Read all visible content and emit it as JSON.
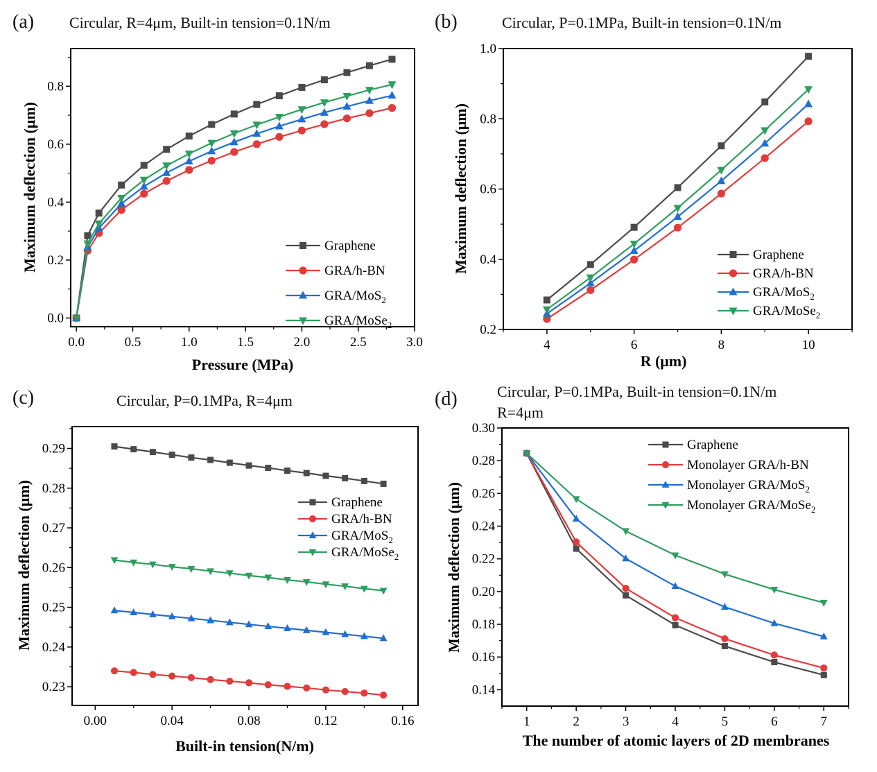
{
  "figure": {
    "series_colors": {
      "Graphene": "#4a4a4a",
      "GRA/h-BN": "#e23b3b",
      "GRA/MoS2": "#1f6fd1",
      "GRA/MoSe2": "#2e9e5e"
    }
  },
  "chart_data": [
    {
      "panel": "(a)",
      "type": "line",
      "title": "Circular, R=4μm, Built-in tension=0.1N/m",
      "xlabel": "Pressure (MPa)",
      "ylabel": "Maximum deflection (μm)",
      "xlim": [
        -0.05,
        3.0
      ],
      "ylim": [
        -0.03,
        0.93
      ],
      "xticks": [
        0.0,
        0.5,
        1.0,
        1.5,
        2.0,
        2.5,
        3.0
      ],
      "xtick_labels": [
        "0.0",
        "0.5",
        "1.0",
        "1.5",
        "2.0",
        "2.5",
        "3.0"
      ],
      "yticks": [
        0.0,
        0.2,
        0.4,
        0.6,
        0.8
      ],
      "ytick_labels": [
        "0.0",
        "0.2",
        "0.4",
        "0.6",
        "0.8"
      ],
      "legend_position": "bottom-right",
      "grid": false,
      "x": [
        0,
        0.1,
        0.2,
        0.4,
        0.6,
        0.8,
        1.0,
        1.2,
        1.4,
        1.6,
        1.8,
        2.0,
        2.2,
        2.4,
        2.6,
        2.8
      ],
      "series": [
        {
          "name": "Graphene",
          "label": "Graphene",
          "label_sub": "",
          "marker": "square",
          "values": [
            0,
            0.284,
            0.362,
            0.459,
            0.527,
            0.582,
            0.628,
            0.668,
            0.704,
            0.737,
            0.767,
            0.796,
            0.822,
            0.847,
            0.871,
            0.893
          ]
        },
        {
          "name": "GRA/h-BN",
          "label": "GRA/h-BN",
          "label_sub": "",
          "marker": "circle",
          "values": [
            0,
            0.232,
            0.293,
            0.373,
            0.429,
            0.473,
            0.511,
            0.543,
            0.573,
            0.6,
            0.625,
            0.647,
            0.669,
            0.689,
            0.707,
            0.725
          ]
        },
        {
          "name": "GRA/MoS2",
          "label": "GRA/MoS",
          "label_sub": "2",
          "marker": "triangle-up",
          "values": [
            0,
            0.245,
            0.31,
            0.395,
            0.454,
            0.501,
            0.541,
            0.576,
            0.607,
            0.636,
            0.662,
            0.686,
            0.709,
            0.73,
            0.75,
            0.768
          ]
        },
        {
          "name": "GRA/MoSe2",
          "label": "GRA/MoSe",
          "label_sub": "2",
          "marker": "triangle-down",
          "values": [
            0,
            0.257,
            0.326,
            0.414,
            0.477,
            0.526,
            0.567,
            0.604,
            0.637,
            0.667,
            0.694,
            0.72,
            0.744,
            0.766,
            0.787,
            0.806
          ]
        }
      ]
    },
    {
      "panel": "(b)",
      "type": "line",
      "title": "Circular, P=0.1MPa, Built-in tension=0.1N/m",
      "xlabel": "R (μm)",
      "ylabel": "Maximum deflection (μm)",
      "xlim": [
        3.0,
        11.0
      ],
      "ylim": [
        0.2,
        1.0
      ],
      "xticks": [
        4,
        6,
        8,
        10
      ],
      "xtick_labels": [
        "4",
        "6",
        "8",
        "10"
      ],
      "yticks": [
        0.2,
        0.4,
        0.6,
        0.8,
        1.0
      ],
      "ytick_labels": [
        "0.2",
        "0.4",
        "0.6",
        "0.8",
        "1.0"
      ],
      "legend_position": "bottom-right",
      "grid": false,
      "x": [
        4,
        5,
        6,
        7,
        8,
        9,
        10
      ],
      "series": [
        {
          "name": "Graphene",
          "label": "Graphene",
          "label_sub": "",
          "marker": "square",
          "values": [
            0.284,
            0.385,
            0.491,
            0.604,
            0.723,
            0.848,
            0.978
          ]
        },
        {
          "name": "GRA/h-BN",
          "label": "GRA/h-BN",
          "label_sub": "",
          "marker": "circle",
          "values": [
            0.23,
            0.312,
            0.399,
            0.49,
            0.587,
            0.688,
            0.793
          ]
        },
        {
          "name": "GRA/MoS2",
          "label": "GRA/MoS",
          "label_sub": "2",
          "marker": "triangle-up",
          "values": [
            0.245,
            0.332,
            0.424,
            0.521,
            0.623,
            0.73,
            0.842
          ]
        },
        {
          "name": "GRA/MoSe2",
          "label": "GRA/MoSe",
          "label_sub": "2",
          "marker": "triangle-down",
          "values": [
            0.257,
            0.348,
            0.444,
            0.546,
            0.654,
            0.767,
            0.884
          ]
        }
      ]
    },
    {
      "panel": "(c)",
      "type": "line",
      "title": "Circular, P=0.1MPa, R=4μm",
      "xlabel": "Built-in tension(N/m)",
      "ylabel": "Maximum deflection (μm)",
      "xlim": [
        -0.012,
        0.168
      ],
      "ylim": [
        0.2253,
        0.2955
      ],
      "xticks": [
        0.0,
        0.04,
        0.08,
        0.12,
        0.16
      ],
      "xtick_labels": [
        "0.00",
        "0.04",
        "0.08",
        "0.12",
        "0.16"
      ],
      "yticks": [
        0.23,
        0.24,
        0.25,
        0.26,
        0.27,
        0.28,
        0.29
      ],
      "ytick_labels": [
        "0.23",
        "0.24",
        "0.25",
        "0.26",
        "0.27",
        "0.28",
        "0.29"
      ],
      "legend_position": "top-right",
      "grid": false,
      "x": [
        0.01,
        0.02,
        0.03,
        0.04,
        0.05,
        0.06,
        0.07,
        0.08,
        0.09,
        0.1,
        0.11,
        0.12,
        0.13,
        0.14,
        0.15
      ],
      "series": [
        {
          "name": "Graphene",
          "label": "Graphene",
          "label_sub": "",
          "marker": "square",
          "values": [
            0.2905,
            0.2898,
            0.2891,
            0.2884,
            0.2877,
            0.2871,
            0.2864,
            0.2857,
            0.2851,
            0.2844,
            0.2838,
            0.2831,
            0.2825,
            0.2818,
            0.2811
          ]
        },
        {
          "name": "GRA/h-BN",
          "label": "GRA/h-BN",
          "label_sub": "",
          "marker": "circle",
          "values": [
            0.234,
            0.2336,
            0.2331,
            0.2327,
            0.2323,
            0.2318,
            0.2314,
            0.231,
            0.2305,
            0.2301,
            0.2297,
            0.2292,
            0.2288,
            0.2284,
            0.2279
          ]
        },
        {
          "name": "GRA/MoS2",
          "label": "GRA/MoS",
          "label_sub": "2",
          "marker": "triangle-up",
          "values": [
            0.2492,
            0.2487,
            0.2482,
            0.2477,
            0.2472,
            0.2467,
            0.2462,
            0.2457,
            0.2452,
            0.2447,
            0.2442,
            0.2437,
            0.2432,
            0.2427,
            0.2422
          ]
        },
        {
          "name": "GRA/MoSe2",
          "label": "GRA/MoSe",
          "label_sub": "2",
          "marker": "triangle-down",
          "values": [
            0.2619,
            0.2613,
            0.2608,
            0.2602,
            0.2597,
            0.2591,
            0.2586,
            0.258,
            0.2575,
            0.2569,
            0.2564,
            0.2558,
            0.2553,
            0.2547,
            0.2542
          ]
        }
      ]
    },
    {
      "panel": "(d)",
      "type": "line",
      "title": "Circular, P=0.1MPa, Built-in tension=0.1N/m",
      "title_line2": "R=4μm",
      "xlabel": "The number of atomic layers of 2D membranes",
      "ylabel": "Maximum deflection (μm)",
      "xlim": [
        0.5,
        7.5
      ],
      "ylim": [
        0.13,
        0.3
      ],
      "xticks": [
        1,
        2,
        3,
        4,
        5,
        6,
        7
      ],
      "xtick_labels": [
        "1",
        "2",
        "3",
        "4",
        "5",
        "6",
        "7"
      ],
      "yticks": [
        0.14,
        0.16,
        0.18,
        0.2,
        0.22,
        0.24,
        0.26,
        0.28,
        0.3
      ],
      "ytick_labels": [
        "0.14",
        "0.16",
        "0.18",
        "0.20",
        "0.22",
        "0.24",
        "0.26",
        "0.28",
        "0.30"
      ],
      "legend_position": "top-right",
      "grid": false,
      "x": [
        1,
        2,
        3,
        4,
        5,
        6,
        7
      ],
      "series": [
        {
          "name": "Graphene",
          "label": "Graphene",
          "label_sub": "",
          "marker": "square",
          "values": [
            0.2845,
            0.2262,
            0.1977,
            0.1795,
            0.1667,
            0.1569,
            0.149
          ]
        },
        {
          "name": "Monolayer GRA/h-BN",
          "label": "Monolayer GRA/h-BN",
          "label_sub": "",
          "marker": "circle",
          "values": [
            0.2845,
            0.2303,
            0.202,
            0.184,
            0.1712,
            0.1612,
            0.1533
          ]
        },
        {
          "name": "Monolayer GRA/MoS2",
          "label": "Monolayer GRA/MoS",
          "label_sub": "2",
          "marker": "triangle-up",
          "values": [
            0.2845,
            0.2445,
            0.2202,
            0.2033,
            0.1906,
            0.1806,
            0.1725
          ]
        },
        {
          "name": "Monolayer GRA/MoSe2",
          "label": "Monolayer GRA/MoSe",
          "label_sub": "2",
          "marker": "triangle-down",
          "values": [
            0.2845,
            0.2566,
            0.237,
            0.2222,
            0.2107,
            0.2012,
            0.1932
          ]
        }
      ]
    }
  ]
}
